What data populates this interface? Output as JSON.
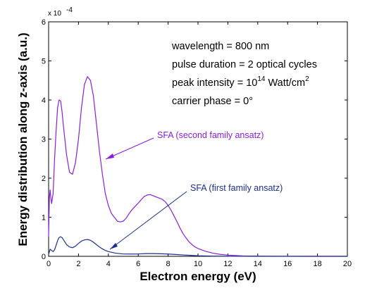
{
  "chart_data": {
    "type": "line",
    "xlabel": "Electron energy (eV)",
    "ylabel": "Energy distribution along z-axis (a.u.)",
    "xlim": [
      0,
      20
    ],
    "ylim": [
      0,
      0.0006
    ],
    "x_ticks": [
      "0",
      "2",
      "4",
      "6",
      "8",
      "10",
      "12",
      "14",
      "16",
      "18",
      "20"
    ],
    "y_ticks": [
      "0",
      "1",
      "2",
      "3",
      "4",
      "5",
      "6"
    ],
    "y_exponent": {
      "base": "x 10",
      "power": "-4"
    },
    "annotations": {
      "wavelength": "wavelength = 800 nm",
      "pulse": "pulse duration = 2 optical cycles",
      "intensity_prefix": "peak intensity = 10",
      "intensity_exp": "14",
      "intensity_unit": " Watt/cm",
      "intensity_unit_exp": "2",
      "phase": "carrier phase = 0°"
    },
    "series": [
      {
        "name": "SFA (second family ansatz)",
        "color": "#8a1ee0",
        "x": [
          0.0,
          0.05,
          0.1,
          0.15,
          0.2,
          0.3,
          0.4,
          0.5,
          0.6,
          0.7,
          0.8,
          0.9,
          1.0,
          1.2,
          1.4,
          1.6,
          1.8,
          2.0,
          2.2,
          2.4,
          2.6,
          2.8,
          3.0,
          3.2,
          3.4,
          3.6,
          3.8,
          4.0,
          4.2,
          4.4,
          4.6,
          4.8,
          5.0,
          5.2,
          5.4,
          5.6,
          5.8,
          6.0,
          6.2,
          6.4,
          6.6,
          6.8,
          7.0,
          7.2,
          7.4,
          7.6,
          7.8,
          8.0,
          8.2,
          8.4,
          8.6,
          8.8,
          9.0,
          9.2,
          9.4,
          9.6,
          9.8,
          10.0,
          10.5,
          11.0,
          11.5,
          12.0,
          12.5,
          13.0,
          14.0,
          15.0,
          16.0,
          17.0,
          18.0,
          19.0,
          20.0
        ],
        "y": [
          5e-05,
          0.00015,
          0.00017,
          0.00015,
          0.000135,
          0.00016,
          0.00025,
          0.00032,
          0.00038,
          0.0004,
          0.000398,
          0.00037,
          0.00033,
          0.00026,
          0.000215,
          0.00021,
          0.00024,
          0.0003,
          0.00038,
          0.00044,
          0.00046,
          0.00045,
          0.00041,
          0.00034,
          0.00027,
          0.00021,
          0.00016,
          0.00013,
          0.00011,
          0.0001,
          9e-05,
          8.8e-05,
          9e-05,
          9.8e-05,
          0.00011,
          0.00012,
          0.000128,
          0.000136,
          0.000145,
          0.000153,
          0.000157,
          0.000158,
          0.000155,
          0.000152,
          0.000149,
          0.000146,
          0.00014,
          0.00013,
          0.000118,
          0.000103,
          8.8e-05,
          7.2e-05,
          5.8e-05,
          4.7e-05,
          3.7e-05,
          3e-05,
          2.4e-05,
          2e-05,
          1.3e-05,
          8e-06,
          5e-06,
          3e-06,
          2e-06,
          1e-06,
          5e-07,
          2e-07,
          1e-07,
          0.0,
          0.0,
          0.0,
          0.0
        ]
      },
      {
        "name": "SFA (first family ansatz)",
        "color": "#1a2f8f",
        "x": [
          0.0,
          0.1,
          0.2,
          0.3,
          0.4,
          0.5,
          0.6,
          0.7,
          0.8,
          0.9,
          1.0,
          1.2,
          1.4,
          1.6,
          1.8,
          2.0,
          2.2,
          2.4,
          2.6,
          2.8,
          3.0,
          3.2,
          3.4,
          3.6,
          3.8,
          4.0,
          4.5,
          5.0,
          5.5,
          6.0,
          6.5,
          7.0,
          7.5,
          8.0,
          8.5,
          9.0,
          9.5,
          10.0,
          10.5,
          11.0,
          12.0,
          13.0,
          14.0,
          16.0,
          18.0,
          20.0
        ],
        "y": [
          5e-06,
          1.8e-05,
          1.5e-05,
          1.2e-05,
          1.7e-05,
          2.8e-05,
          4e-05,
          4.8e-05,
          5e-05,
          4.8e-05,
          4.2e-05,
          3e-05,
          2.4e-05,
          2.2e-05,
          2.6e-05,
          3.3e-05,
          3.9e-05,
          4.2e-05,
          4.3e-05,
          4.1e-05,
          3.6e-05,
          3e-05,
          2.4e-05,
          1.9e-05,
          1.5e-05,
          1.2e-05,
          8e-06,
          6e-06,
          5.8e-06,
          6e-06,
          7e-06,
          7e-06,
          6.5e-06,
          5.8e-06,
          4.8e-06,
          3.5e-06,
          2.5e-06,
          1.5e-06,
          1e-06,
          5e-07,
          2e-07,
          1e-07,
          0.0,
          0.0,
          0.0,
          0.0
        ]
      }
    ],
    "series_labels": [
      {
        "text": "SFA (second family ansatz)",
        "color": "#8a1ee0",
        "arrow_to": {
          "x": 3.75,
          "y": 0.000242
        }
      },
      {
        "text": "SFA (first family ansatz)",
        "color": "#1a2f8f",
        "arrow_to": {
          "x": 4.0,
          "y": 1.5e-05
        }
      }
    ]
  }
}
